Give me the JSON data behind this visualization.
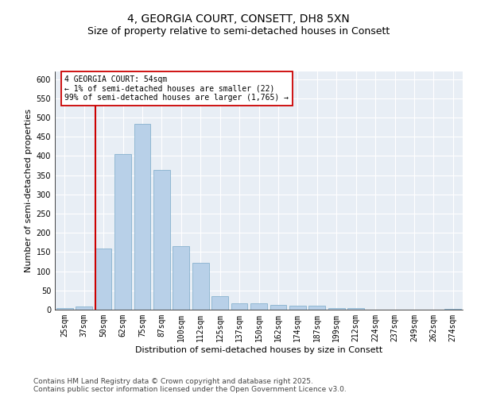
{
  "title": "4, GEORGIA COURT, CONSETT, DH8 5XN",
  "subtitle": "Size of property relative to semi-detached houses in Consett",
  "xlabel": "Distribution of semi-detached houses by size in Consett",
  "ylabel": "Number of semi-detached properties",
  "categories": [
    "25sqm",
    "37sqm",
    "50sqm",
    "62sqm",
    "75sqm",
    "87sqm",
    "100sqm",
    "112sqm",
    "125sqm",
    "137sqm",
    "150sqm",
    "162sqm",
    "174sqm",
    "187sqm",
    "199sqm",
    "212sqm",
    "224sqm",
    "237sqm",
    "249sqm",
    "262sqm",
    "274sqm"
  ],
  "values": [
    5,
    8,
    160,
    405,
    483,
    363,
    165,
    122,
    36,
    17,
    16,
    13,
    10,
    10,
    4,
    4,
    0,
    0,
    1,
    0,
    2
  ],
  "bar_color": "#b8d0e8",
  "bar_edge_color": "#7aaac8",
  "annotation_text": "4 GEORGIA COURT: 54sqm\n← 1% of semi-detached houses are smaller (22)\n99% of semi-detached houses are larger (1,765) →",
  "annotation_box_color": "#ffffff",
  "annotation_box_edge": "#cc0000",
  "vline_color": "#cc0000",
  "ylim": [
    0,
    620
  ],
  "yticks": [
    0,
    50,
    100,
    150,
    200,
    250,
    300,
    350,
    400,
    450,
    500,
    550,
    600
  ],
  "background_color": "#e8eef5",
  "grid_color": "#ffffff",
  "footer_text": "Contains HM Land Registry data © Crown copyright and database right 2025.\nContains public sector information licensed under the Open Government Licence v3.0.",
  "title_fontsize": 10,
  "subtitle_fontsize": 9,
  "axis_label_fontsize": 8,
  "tick_fontsize": 7,
  "annotation_fontsize": 7,
  "footer_fontsize": 6.5,
  "vline_x_index": 2
}
